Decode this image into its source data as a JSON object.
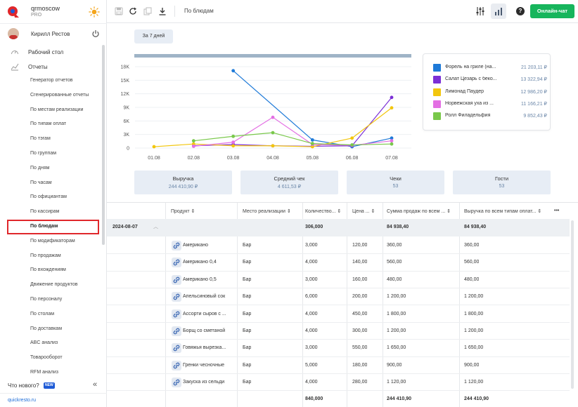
{
  "brand": {
    "name": "qrmoscow",
    "plan": "PRO"
  },
  "user": {
    "name": "Кирилл Рестов"
  },
  "nav": {
    "desktop": "Рабочий стол",
    "reports": "Отчеты",
    "items": [
      "Генератор отчетов",
      "Сгенерированные отчеты",
      "По местам реализации",
      "По типам оплат",
      "По тэгам",
      "По группам",
      "По дням",
      "По часам",
      "По официантам",
      "По кассирам",
      "По блюдам",
      "По модификаторам",
      "По продажам",
      "По вхождениям",
      "Движение продуктов",
      "По персоналу",
      "По столам",
      "По доставкам",
      "ABC анализ",
      "Товарооборот",
      "RFM анализ"
    ],
    "active_index": 10
  },
  "sidebar_footer": {
    "whats_new": "Что нового?",
    "badge": "NEW",
    "collapse": "«",
    "site": "quickresto.ru"
  },
  "topbar": {
    "breadcrumb": "По блюдам",
    "help": "?",
    "chat": "Онлайн-чат"
  },
  "period": "За 7 дней",
  "chart_data": {
    "type": "line",
    "x": [
      "01.08",
      "02.08",
      "03.08",
      "04.08",
      "05.08",
      "06.08",
      "07.08"
    ],
    "yticks": [
      "0",
      "3K",
      "6K",
      "9K",
      "12K",
      "15K",
      "18K"
    ],
    "ylim": [
      0,
      18000
    ],
    "series": [
      {
        "name": "Форель на гриле (на...",
        "color": "#1e7ad8",
        "values": [
          null,
          null,
          17100,
          null,
          1800,
          300,
          2200
        ]
      },
      {
        "name": "Салат Цезарь с беко...",
        "color": "#7b2fd6",
        "values": [
          null,
          500,
          800,
          500,
          400,
          500,
          11200
        ]
      },
      {
        "name": "Лимонад Паудер",
        "color": "#f2c60d",
        "values": [
          300,
          900,
          500,
          500,
          300,
          2200,
          8900
        ]
      },
      {
        "name": "Норвежская уха из ...",
        "color": "#e36fe3",
        "values": [
          null,
          400,
          1300,
          6800,
          800,
          600,
          1600
        ]
      },
      {
        "name": "Ролл Филадельфия",
        "color": "#79c84a",
        "values": [
          null,
          1600,
          2600,
          3400,
          1000,
          700,
          900
        ]
      }
    ],
    "legend": [
      {
        "name": "Форель на гриле (на...",
        "value": "21 203,11 ₽",
        "color": "#1e7ad8"
      },
      {
        "name": "Салат Цезарь с беко...",
        "value": "13 322,94 ₽",
        "color": "#7b2fd6"
      },
      {
        "name": "Лимонад Паудер",
        "value": "12 986,20 ₽",
        "color": "#f2c60d"
      },
      {
        "name": "Норвежская уха из ...",
        "value": "11 166,21 ₽",
        "color": "#e36fe3"
      },
      {
        "name": "Ролл Филадельфия",
        "value": "9 852,43 ₽",
        "color": "#79c84a"
      }
    ]
  },
  "kpis": [
    {
      "label": "Выручка",
      "value": "244 410,90 ₽"
    },
    {
      "label": "Средний чек",
      "value": "4 611,53 ₽"
    },
    {
      "label": "Чеки",
      "value": "53"
    },
    {
      "label": "Гости",
      "value": "53"
    }
  ],
  "table": {
    "headers": [
      "Продукт",
      "Место реализации",
      "Количество...",
      "Цена ...",
      "Сумма продаж по всем ...",
      "Выручка по всем типам оплат..."
    ],
    "group": {
      "date": "2024-08-07",
      "qty": "306,000",
      "sum": "84 938,40",
      "revenue": "84 938,40"
    },
    "rows": [
      {
        "product": "Американо",
        "place": "Бар",
        "qty": "3,000",
        "price": "120,00",
        "sum": "360,00",
        "revenue": "360,00"
      },
      {
        "product": "Американо 0,4",
        "place": "Бар",
        "qty": "4,000",
        "price": "140,00",
        "sum": "560,00",
        "revenue": "560,00"
      },
      {
        "product": "Американо 0,5",
        "place": "Бар",
        "qty": "3,000",
        "price": "160,00",
        "sum": "480,00",
        "revenue": "480,00"
      },
      {
        "product": "Апельсиновый сок",
        "place": "Бар",
        "qty": "6,000",
        "price": "200,00",
        "sum": "1 200,00",
        "revenue": "1 200,00"
      },
      {
        "product": "Ассорти сыров с ...",
        "place": "Бар",
        "qty": "4,000",
        "price": "450,00",
        "sum": "1 800,00",
        "revenue": "1 800,00"
      },
      {
        "product": "Борщ со сметаной",
        "place": "Бар",
        "qty": "4,000",
        "price": "300,00",
        "sum": "1 200,00",
        "revenue": "1 200,00"
      },
      {
        "product": "Говяжья вырезка...",
        "place": "Бар",
        "qty": "3,000",
        "price": "550,00",
        "sum": "1 650,00",
        "revenue": "1 650,00"
      },
      {
        "product": "Гренки чесночные",
        "place": "Бар",
        "qty": "5,000",
        "price": "180,00",
        "sum": "900,00",
        "revenue": "900,00"
      },
      {
        "product": "Закуска из сельди",
        "place": "Бар",
        "qty": "4,000",
        "price": "280,00",
        "sum": "1 120,00",
        "revenue": "1 120,00"
      }
    ],
    "totals": {
      "qty": "840,000",
      "sum": "244 410,90",
      "revenue": "244 410,90"
    },
    "more": "•••"
  }
}
